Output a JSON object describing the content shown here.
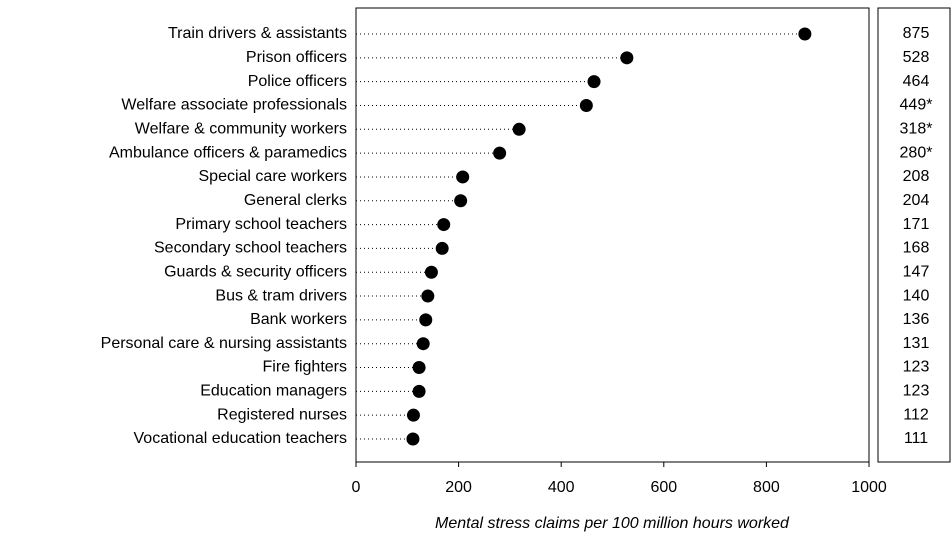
{
  "chart_data": {
    "type": "dot",
    "x_label": "Mental stress claims per 100 million hours worked",
    "categories": [
      "Train drivers & assistants",
      "Prison officers",
      "Police officers",
      "Welfare associate professionals",
      "Welfare & community workers",
      "Ambulance officers & paramedics",
      "Special care workers",
      "General clerks",
      "Primary school teachers",
      "Secondary school teachers",
      "Guards & security officers",
      "Bus & tram drivers",
      "Bank workers",
      "Personal care & nursing assistants",
      "Fire fighters",
      "Education managers",
      "Registered nurses",
      "Vocational education teachers"
    ],
    "values": [
      875,
      528,
      464,
      449,
      318,
      280,
      208,
      204,
      171,
      168,
      147,
      140,
      136,
      131,
      123,
      123,
      112,
      111
    ],
    "value_labels": [
      "875",
      "528",
      "464",
      "449*",
      "318*",
      "280*",
      "208",
      "204",
      "171",
      "168",
      "147",
      "140",
      "136",
      "131",
      "123",
      "123",
      "112",
      "111"
    ],
    "color": "#000000",
    "xlim": [
      0,
      1000
    ],
    "xticks": [
      0,
      200,
      400,
      600,
      800,
      1000
    ]
  }
}
